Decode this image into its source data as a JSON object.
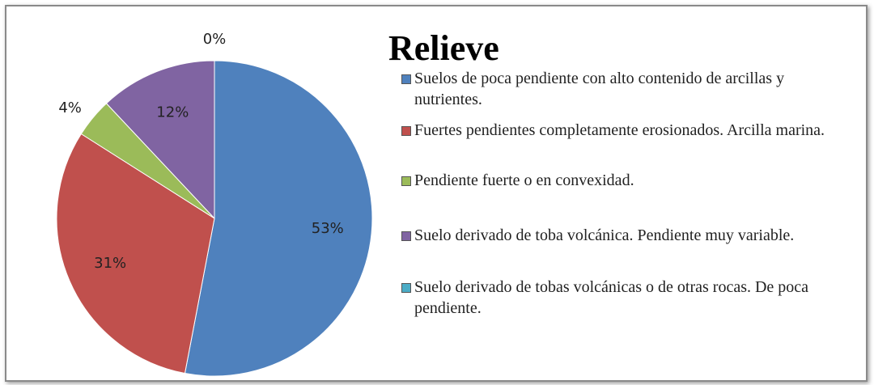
{
  "chart_data": {
    "type": "pie",
    "title": "Relieve",
    "categories": [
      "Suelos de poca pendiente con alto contenido de arcillas y nutrientes.",
      "Fuertes pendientes completamente erosionados. Arcilla marina.",
      "Pendiente fuerte o en convexidad.",
      "Suelo derivado de toba volcánica. Pendiente muy variable.",
      "Suelo derivado de tobas volcánicas o de otras rocas. De poca pendiente."
    ],
    "values": [
      53,
      31,
      4,
      12,
      0
    ],
    "value_labels": [
      "53%",
      "31%",
      "4%",
      "12%",
      "0%"
    ],
    "colors": [
      "#4f81bd",
      "#c0504d",
      "#9bbb59",
      "#8064a2",
      "#4bacc6"
    ],
    "legend": "right"
  }
}
